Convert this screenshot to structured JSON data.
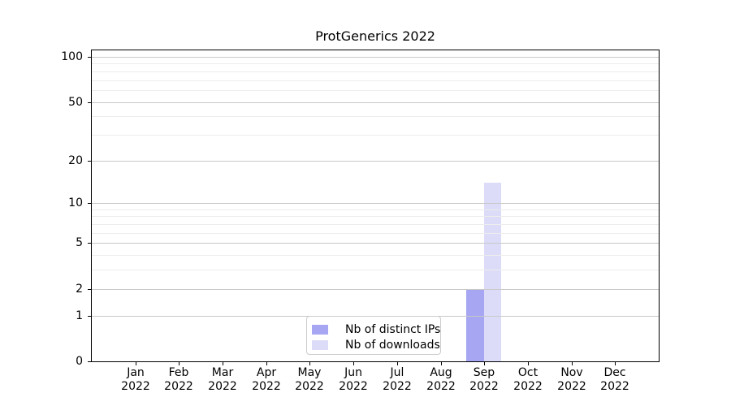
{
  "chart_data": {
    "type": "bar",
    "title": "ProtGenerics 2022",
    "categories": [
      "Jan",
      "Feb",
      "Mar",
      "Apr",
      "May",
      "Jun",
      "Jul",
      "Aug",
      "Sep",
      "Oct",
      "Nov",
      "Dec"
    ],
    "category_year_line": "2022",
    "series": [
      {
        "name": "Nb of distinct IPs",
        "color": "#a6a6f2",
        "values": [
          0,
          0,
          0,
          0,
          0,
          0,
          0,
          0,
          2,
          0,
          0,
          0
        ]
      },
      {
        "name": "Nb of downloads",
        "color": "#dcdcf8",
        "values": [
          0,
          0,
          0,
          0,
          0,
          0,
          0,
          0,
          14,
          0,
          0,
          0
        ]
      }
    ],
    "xlabel": "",
    "ylabel": "",
    "y_scale": "log1p",
    "ylim": [
      0,
      112
    ],
    "y_tick_values": [
      0,
      1,
      2,
      5,
      10,
      20,
      50,
      100
    ],
    "y_tick_labels": [
      "0",
      "1",
      "2",
      "5",
      "10",
      "20",
      "50",
      "100"
    ],
    "y_minor_gridline_values": [
      3,
      4,
      6,
      7,
      8,
      9,
      30,
      40,
      60,
      70,
      80,
      90
    ],
    "grid": "on",
    "grid_above_bars": true,
    "legend": {
      "position": "inside-bottom-center",
      "entries": [
        "Nb of distinct IPs",
        "Nb of downloads"
      ]
    },
    "colors": {
      "grid_major": "#c9c9c9",
      "grid_minor": "#ededed",
      "axis": "#000000",
      "text": "#000000",
      "background": "#ffffff"
    }
  }
}
